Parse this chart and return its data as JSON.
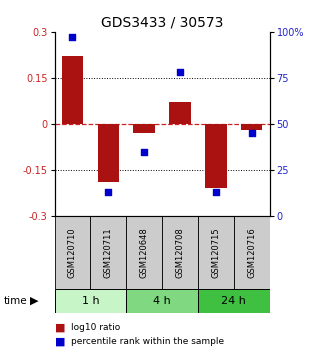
{
  "title": "GDS3433 / 30573",
  "samples": [
    "GSM120710",
    "GSM120711",
    "GSM120648",
    "GSM120708",
    "GSM120715",
    "GSM120716"
  ],
  "log10_ratio": [
    0.22,
    -0.19,
    -0.03,
    0.07,
    -0.21,
    -0.02
  ],
  "percentile_rank": [
    97,
    13,
    35,
    78,
    13,
    45
  ],
  "groups": [
    {
      "label": "1 h",
      "start": 0,
      "end": 1,
      "color": "#c8f5c8"
    },
    {
      "label": "4 h",
      "start": 2,
      "end": 3,
      "color": "#80d880"
    },
    {
      "label": "24 h",
      "start": 4,
      "end": 5,
      "color": "#40c040"
    }
  ],
  "bar_color": "#aa1111",
  "dot_color": "#0000cc",
  "ylim": [
    -0.3,
    0.3
  ],
  "yticks_left": [
    -0.3,
    -0.15,
    0,
    0.15,
    0.3
  ],
  "yticks_right": [
    0,
    25,
    50,
    75,
    100
  ],
  "ylabel_left_color": "#cc2222",
  "ylabel_right_color": "#2222cc",
  "background_color": "#ffffff",
  "label_bg_color": "#cccccc",
  "title_fontsize": 10,
  "tick_fontsize": 7,
  "sample_fontsize": 6,
  "group_fontsize": 8
}
